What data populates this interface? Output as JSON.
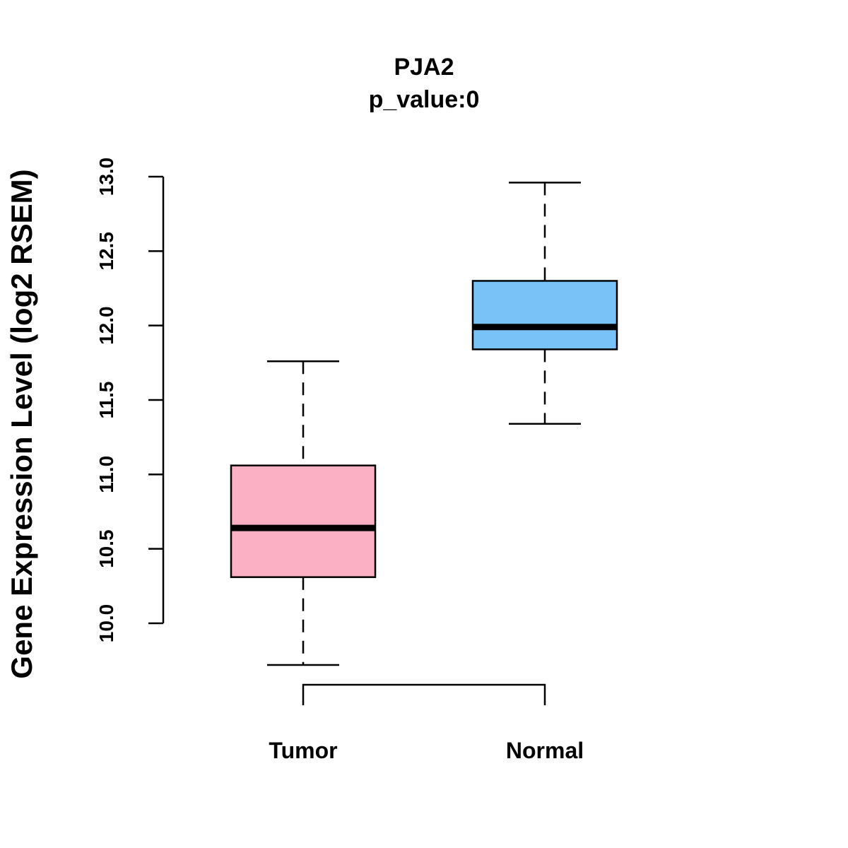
{
  "chart_data": {
    "type": "boxplot",
    "title": "PJA2",
    "subtitle": "p_value:0",
    "xlabel": "",
    "ylabel": "Gene Expression Level (log2 RSEM)",
    "ylim": [
      10.0,
      13.0
    ],
    "yticks": [
      "10.0",
      "10.5",
      "11.0",
      "11.5",
      "12.0",
      "12.5",
      "13.0"
    ],
    "grid": false,
    "categories": [
      "Tumor",
      "Normal"
    ],
    "series": [
      {
        "name": "Tumor",
        "color": "#FBB1C3",
        "whisker_low": 9.72,
        "q1": 10.31,
        "median": 10.64,
        "q3": 11.06,
        "whisker_high": 11.76
      },
      {
        "name": "Normal",
        "color": "#79C2F7",
        "whisker_low": 11.34,
        "q1": 11.84,
        "median": 11.99,
        "q3": 12.3,
        "whisker_high": 12.96
      }
    ],
    "comparison_bracket": [
      "Tumor",
      "Normal"
    ]
  }
}
